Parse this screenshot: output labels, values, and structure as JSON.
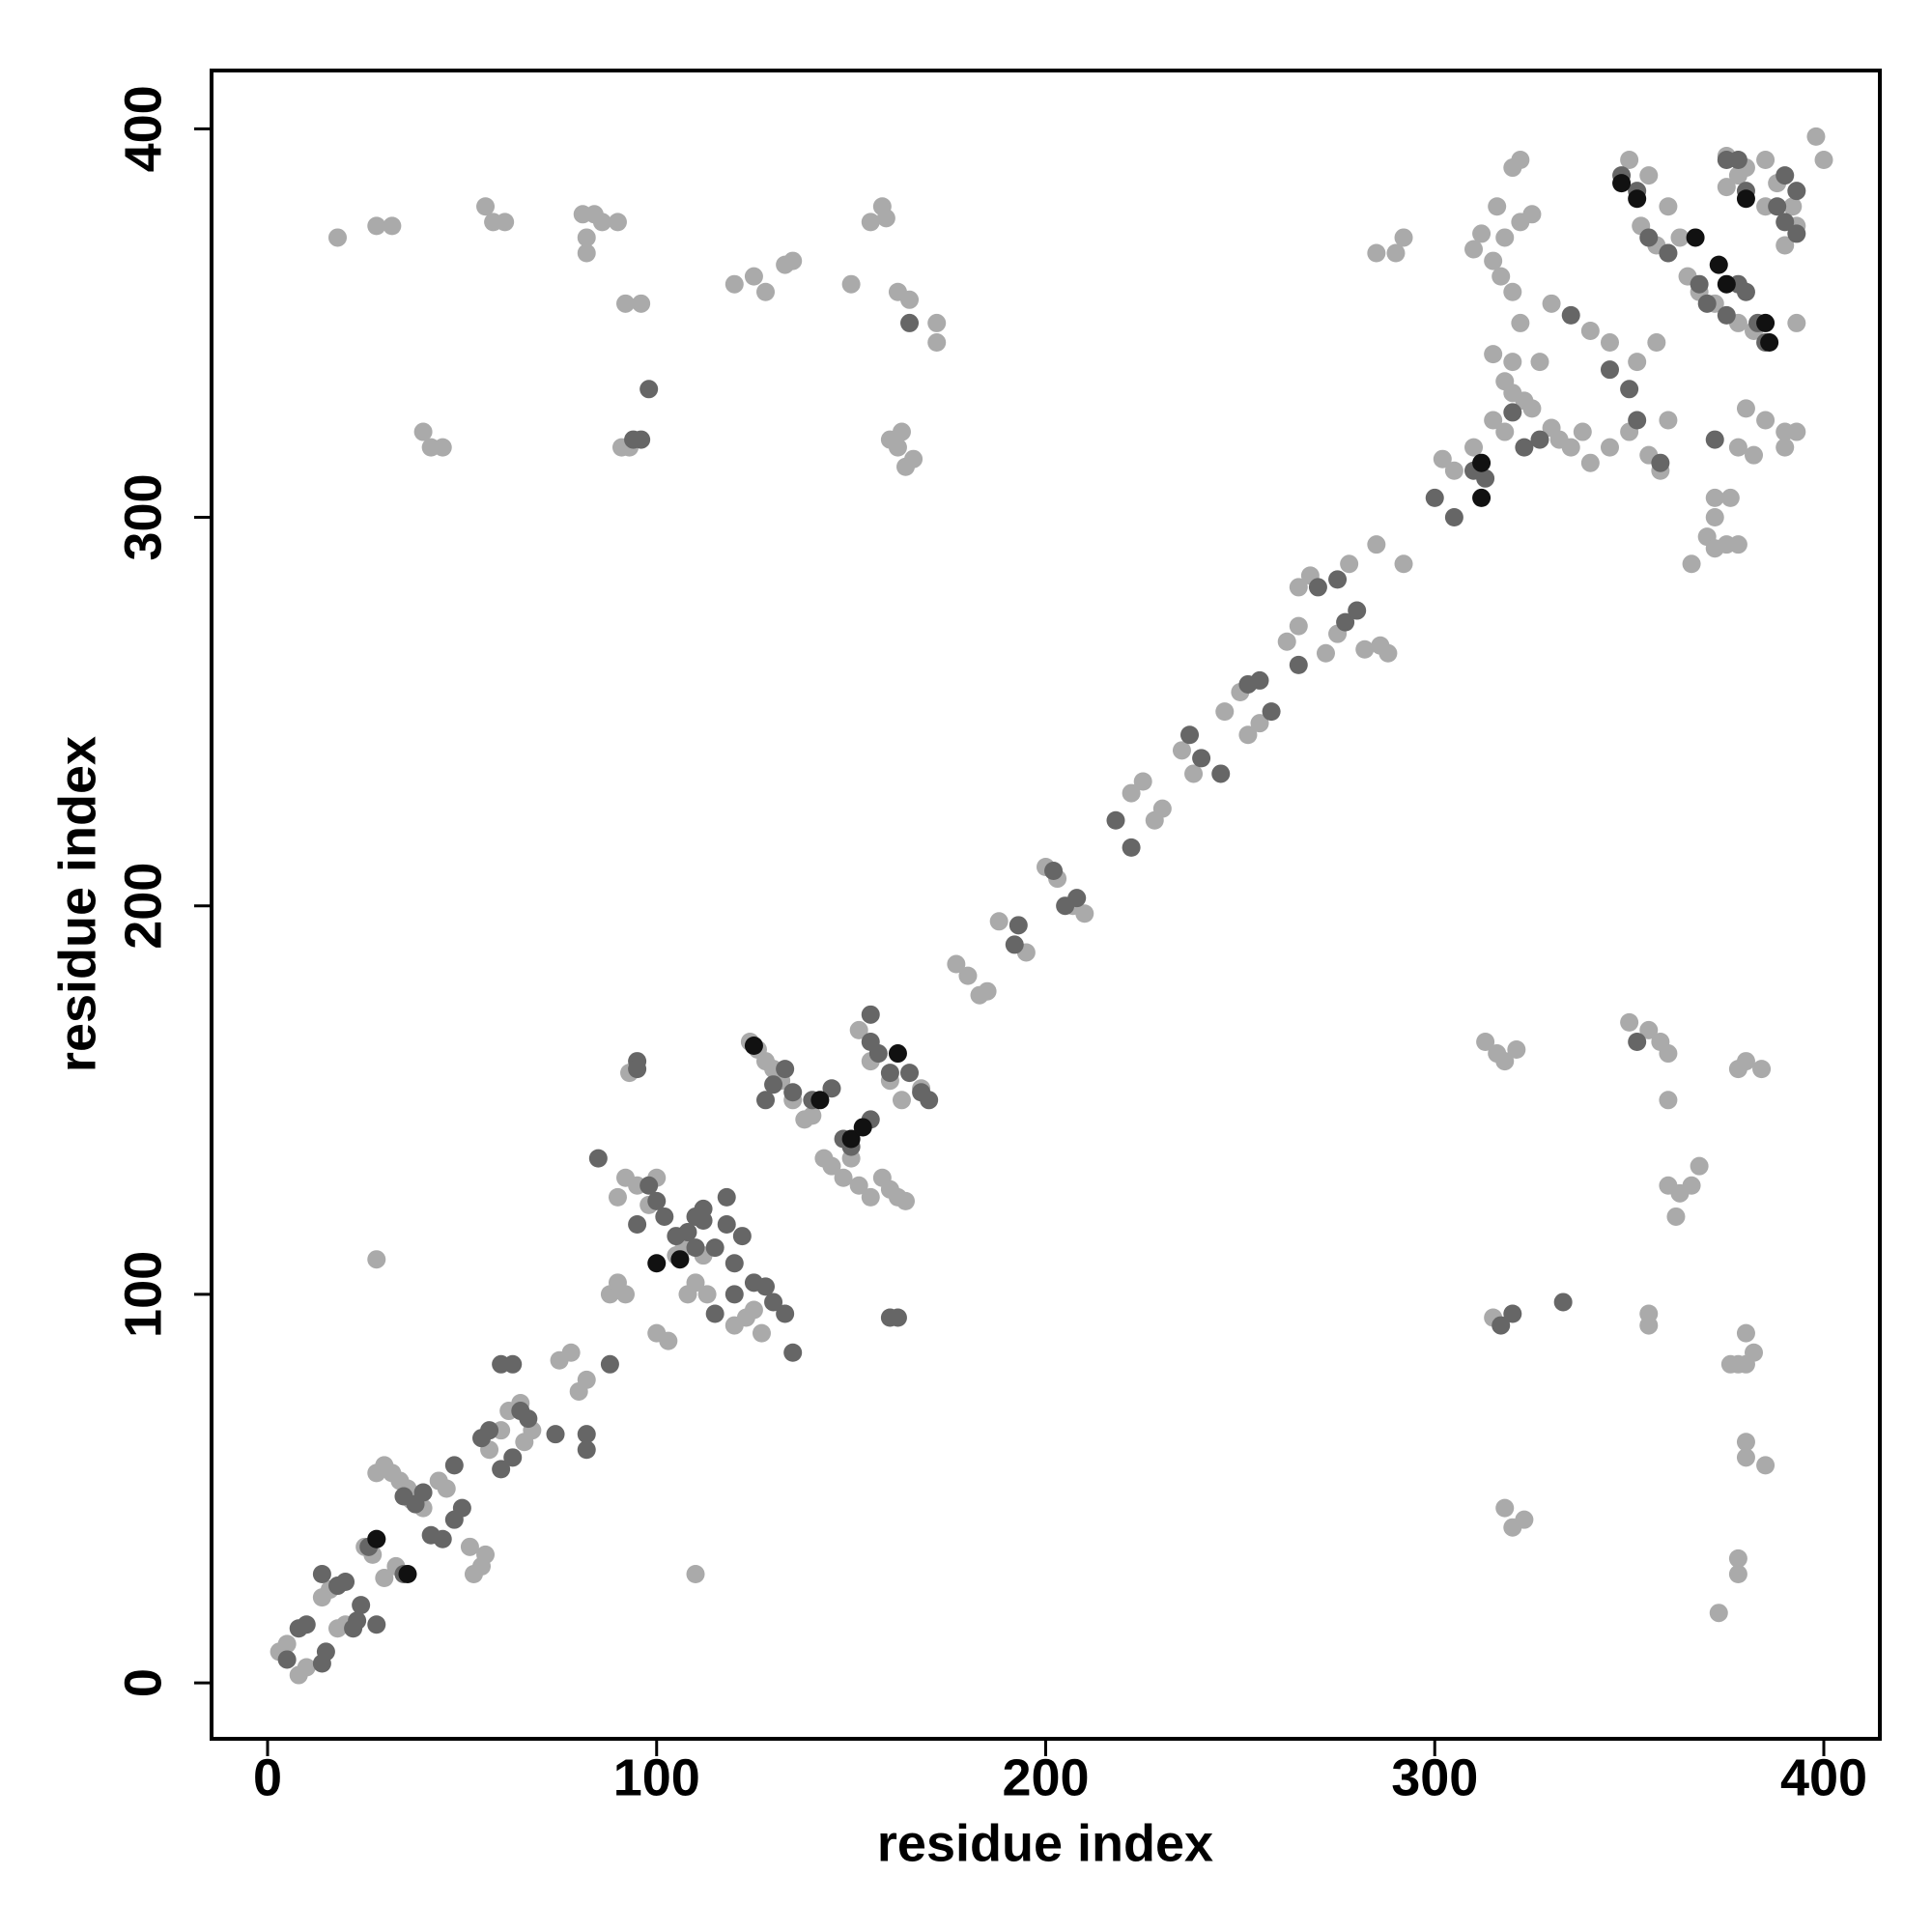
{
  "chart_data": {
    "type": "scatter",
    "x_label": "residue index",
    "y_label": "residue index",
    "xlim": [
      -14.4,
      414.4
    ],
    "ylim": [
      -14.4,
      415
    ],
    "xticks": [
      0,
      100,
      200,
      300,
      400
    ],
    "yticks": [
      0,
      100,
      200,
      300,
      400
    ],
    "grid": false,
    "series": [
      {
        "color": "#aaaaaa",
        "x": [
          3,
          5,
          8,
          10,
          14,
          16,
          18,
          20,
          25,
          27,
          28,
          30,
          32,
          34,
          36,
          30,
          33,
          37,
          40,
          44,
          46,
          52,
          55,
          56,
          53,
          57,
          60,
          62,
          65,
          66,
          68,
          75,
          78,
          80,
          82,
          88,
          90,
          92,
          90,
          92,
          95,
          98,
          100,
          100,
          103,
          105,
          107,
          108,
          110,
          112,
          113,
          120,
          123,
          125,
          127,
          124,
          126,
          128,
          130,
          132,
          135,
          138,
          140,
          143,
          145,
          148,
          150,
          152,
          155,
          158,
          160,
          162,
          164,
          152,
          155,
          160,
          163,
          168,
          177,
          180,
          183,
          185,
          188,
          195,
          200,
          203,
          207,
          210,
          222,
          225,
          228,
          230,
          235,
          238,
          246,
          250,
          252,
          255,
          265,
          268,
          262,
          265,
          272,
          275,
          278,
          285,
          282,
          286,
          288,
          292,
          302,
          305,
          310,
          315,
          318,
          320,
          325,
          327,
          330,
          332,
          335,
          340,
          338,
          345,
          350,
          355,
          358,
          352,
          357,
          360,
          353,
          357,
          360,
          365,
          368,
          372,
          378,
          382,
          385,
          388,
          392,
          393,
          390,
          398,
          400,
          380,
          385,
          375,
          378,
          375,
          393,
          393,
          390,
          380,
          378,
          382,
          390,
          385,
          370,
          372,
          372,
          376,
          372,
          375,
          378,
          366,
          316,
          318,
          322,
          325,
          320,
          322,
          317,
          320,
          322,
          318,
          315,
          320,
          323,
          315,
          290,
          292,
          285,
          312,
          310,
          330,
          340,
          345,
          350,
          355,
          360,
          363,
          18,
          28,
          32,
          56,
          58,
          61,
          81,
          84,
          86,
          82,
          82,
          90,
          92,
          96,
          40,
          42,
          45,
          91,
          93,
          120,
          125,
          128,
          133,
          135,
          150,
          155,
          158,
          159,
          162,
          165,
          172,
          172,
          160,
          162,
          164,
          166,
          163,
          313,
          316,
          318,
          321,
          318,
          320,
          323,
          350,
          355,
          358,
          360,
          360,
          360,
          362,
          363,
          366,
          368,
          355,
          355,
          376,
          378,
          380,
          382,
          380,
          373,
          378,
          378,
          380,
          380,
          385,
          378,
          380,
          384,
          315,
          93,
          28,
          110
        ],
        "values": [
          8,
          10,
          2,
          4,
          22,
          24,
          14,
          15,
          35,
          33,
          54,
          56,
          54,
          52,
          50,
          27,
          30,
          47,
          45,
          52,
          50,
          35,
          30,
          33,
          28,
          60,
          65,
          70,
          72,
          62,
          65,
          83,
          85,
          75,
          78,
          100,
          103,
          100,
          125,
          130,
          128,
          123,
          130,
          90,
          88,
          110,
          112,
          100,
          103,
          110,
          100,
          92,
          94,
          96,
          90,
          165,
          163,
          160,
          158,
          155,
          150,
          145,
          146,
          135,
          133,
          130,
          135,
          128,
          125,
          130,
          127,
          125,
          124,
          168,
          160,
          155,
          150,
          153,
          185,
          182,
          177,
          178,
          196,
          188,
          210,
          207,
          200,
          198,
          229,
          232,
          222,
          225,
          240,
          234,
          250,
          255,
          244,
          247,
          282,
          285,
          268,
          272,
          265,
          270,
          288,
          293,
          266,
          267,
          265,
          288,
          315,
          312,
          318,
          325,
          322,
          332,
          328,
          340,
          323,
          320,
          318,
          314,
          322,
          318,
          322,
          316,
          312,
          340,
          345,
          325,
          375,
          370,
          368,
          362,
          358,
          355,
          350,
          348,
          392,
          386,
          380,
          375,
          370,
          398,
          392,
          390,
          380,
          393,
          388,
          385,
          350,
          322,
          322,
          328,
          318,
          316,
          318,
          325,
          295,
          300,
          305,
          305,
          292,
          293,
          293,
          288,
          380,
          372,
          376,
          378,
          390,
          392,
          362,
          358,
          350,
          335,
          342,
          340,
          330,
          366,
          368,
          372,
          368,
          373,
          369,
          355,
          348,
          345,
          392,
          388,
          380,
          372,
          372,
          375,
          375,
          380,
          376,
          376,
          378,
          378,
          376,
          368,
          372,
          376,
          355,
          355,
          322,
          318,
          318,
          318,
          318,
          360,
          362,
          358,
          365,
          366,
          360,
          376,
          380,
          377,
          358,
          356,
          350,
          345,
          320,
          318,
          313,
          315,
          322,
          165,
          162,
          160,
          163,
          45,
          40,
          42,
          170,
          168,
          165,
          162,
          150,
          128,
          120,
          126,
          128,
          133,
          95,
          92,
          82,
          82,
          82,
          85,
          90,
          18,
          28,
          32,
          58,
          62,
          56,
          158,
          160,
          158,
          94,
          157,
          109,
          28
        ]
      },
      {
        "color": "#666666",
        "x": [
          5,
          8,
          10,
          14,
          15,
          14,
          18,
          20,
          22,
          23,
          24,
          26,
          28,
          28,
          35,
          38,
          40,
          42,
          45,
          48,
          48,
          50,
          55,
          57,
          60,
          60,
          63,
          63,
          65,
          67,
          74,
          82,
          82,
          85,
          88,
          95,
          95,
          95,
          98,
          100,
          102,
          105,
          108,
          110,
          112,
          115,
          118,
          120,
          122,
          118,
          112,
          110,
          125,
          128,
          130,
          133,
          135,
          120,
          115,
          128,
          130,
          133,
          135,
          140,
          145,
          148,
          150,
          155,
          155,
          157,
          160,
          165,
          170,
          162,
          160,
          98,
          96,
          94,
          155,
          168,
          192,
          193,
          202,
          205,
          208,
          218,
          222,
          237,
          240,
          245,
          252,
          255,
          258,
          265,
          270,
          275,
          277,
          280,
          300,
          305,
          310,
          313,
          320,
          323,
          327,
          335,
          345,
          350,
          352,
          348,
          352,
          355,
          360,
          368,
          370,
          375,
          378,
          380,
          383,
          385,
          388,
          390,
          393,
          393,
          390,
          375,
          378,
          380,
          372,
          358,
          352,
          333,
          320,
          317,
          165,
          35
        ],
        "values": [
          6,
          14,
          15,
          5,
          8,
          28,
          25,
          26,
          14,
          16,
          20,
          35,
          37,
          15,
          48,
          46,
          49,
          38,
          37,
          42,
          56,
          45,
          63,
          65,
          55,
          82,
          82,
          58,
          70,
          68,
          64,
          64,
          60,
          135,
          82,
          160,
          158,
          118,
          128,
          124,
          120,
          115,
          116,
          120,
          119,
          112,
          118,
          108,
          115,
          125,
          122,
          112,
          103,
          102,
          98,
          95,
          85,
          100,
          95,
          150,
          154,
          158,
          152,
          150,
          153,
          140,
          138,
          145,
          165,
          162,
          157,
          157,
          150,
          94,
          94,
          333,
          320,
          320,
          172,
          152,
          190,
          195,
          209,
          200,
          202,
          222,
          215,
          244,
          238,
          234,
          257,
          258,
          250,
          262,
          282,
          284,
          273,
          276,
          305,
          300,
          312,
          310,
          327,
          318,
          320,
          352,
          338,
          333,
          325,
          388,
          384,
          372,
          368,
          360,
          355,
          352,
          360,
          358,
          350,
          345,
          380,
          388,
          384,
          373,
          376,
          392,
          392,
          384,
          320,
          314,
          165,
          98,
          95,
          92,
          350,
          28
        ]
      },
      {
        "color": "#111111",
        "x": [
          36,
          100,
          142,
          150,
          153,
          162,
          312,
          312,
          367,
          373,
          375,
          380,
          385,
          386,
          348,
          352,
          106,
          125,
          28
        ],
        "values": [
          28,
          108,
          150,
          140,
          143,
          162,
          305,
          314,
          372,
          365,
          360,
          382,
          350,
          345,
          386,
          382,
          109,
          164,
          37
        ]
      }
    ]
  }
}
